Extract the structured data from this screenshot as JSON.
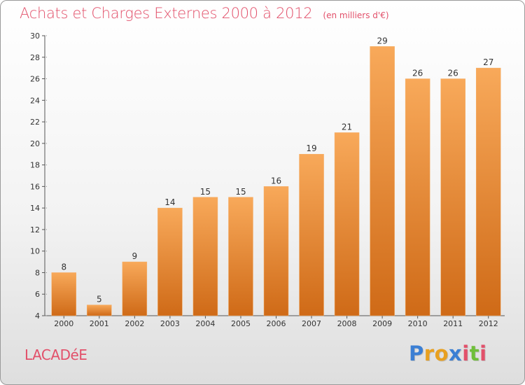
{
  "header": {
    "title": "Achats et Charges Externes 2000 à 2012",
    "unit": "(en milliers d'€)"
  },
  "commune": "LACADéE",
  "logo": {
    "text": "Proxiti",
    "letters": [
      {
        "char": "P",
        "color": "#3b7fd4"
      },
      {
        "char": "r",
        "color": "#e8a020"
      },
      {
        "char": "o",
        "color": "#e8a020"
      },
      {
        "char": "x",
        "color": "#3b7fd4"
      },
      {
        "char": "i",
        "color": "#e2506a"
      },
      {
        "char": "t",
        "color": "#6fbf3a"
      },
      {
        "char": "i",
        "color": "#e2506a"
      }
    ]
  },
  "colors": {
    "bar_top": "#f8a95a",
    "bar_bottom": "#cf6a17",
    "axis": "#555555",
    "grid": "#8a8a8a",
    "title": "#e2506a"
  },
  "chart_data": {
    "type": "bar",
    "title": "Achats et Charges Externes 2000 à 2012",
    "subtitle": "(en milliers d'€)",
    "xlabel": "",
    "ylabel": "",
    "categories": [
      "2000",
      "2001",
      "2002",
      "2003",
      "2004",
      "2005",
      "2006",
      "2007",
      "2008",
      "2009",
      "2010",
      "2011",
      "2012"
    ],
    "values": [
      8,
      5,
      9,
      14,
      15,
      15,
      16,
      19,
      21,
      29,
      26,
      26,
      27
    ],
    "ylim": [
      4,
      30
    ],
    "yticks": [
      4,
      6,
      8,
      10,
      12,
      14,
      16,
      18,
      20,
      22,
      24,
      26,
      28,
      30
    ],
    "grid": false,
    "legend": "none"
  }
}
